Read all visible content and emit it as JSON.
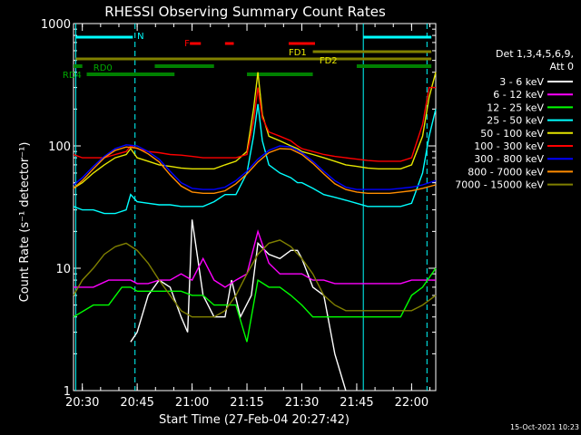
{
  "chart_data": {
    "type": "line",
    "title": "RHESSI Observing Summary Count Rates",
    "xlabel": "Start Time (27-Feb-04 20:27:42)",
    "ylabel": "Count Rate (s⁻¹ detector⁻¹)",
    "yscale": "log",
    "ylim": [
      1,
      1000
    ],
    "xlim_minutes": [
      20.46,
      22.11
    ],
    "x_ticks": [
      "20:30",
      "20:45",
      "21:00",
      "21:15",
      "21:30",
      "21:45",
      "22:00"
    ],
    "y_ticks": [
      "1",
      "10",
      "100",
      "1000"
    ],
    "legend": {
      "header": "Det 1,3,4,5,6,9,",
      "header2": "Att 0",
      "entries": [
        "3 - 6 keV",
        "6 - 12 keV",
        "12 - 25 keV",
        "25 - 50 keV",
        "50 - 100 keV",
        "100 - 300 keV",
        "300 - 800 keV",
        "800 - 7000 keV",
        "7000 - 15000 keV"
      ],
      "colors": [
        "#ffffff",
        "#ff00ff",
        "#00ff00",
        "#00ffff",
        "#e6e600",
        "#ff0000",
        "#0000ff",
        "#ff8c00",
        "#808000"
      ]
    },
    "annotations": {
      "N": "N",
      "F": "F",
      "FD1": "FD1",
      "FD2": "FD2",
      "RD0": "RD0",
      "RD4": "RD4"
    },
    "series": [
      {
        "name": "3 - 6 keV",
        "color": "#ffffff",
        "x": [
          20.46,
          20.55,
          20.62,
          20.68,
          20.72,
          20.75,
          20.8,
          20.85,
          20.9,
          20.95,
          20.98,
          21.0,
          21.05,
          21.1,
          21.15,
          21.18,
          21.22,
          21.27,
          21.3,
          21.35,
          21.4,
          21.45,
          21.48,
          21.5,
          21.55,
          21.6,
          21.65,
          21.7,
          21.75,
          21.8,
          21.85,
          21.9,
          21.95,
          22.0,
          22.05,
          22.11
        ],
        "y": [
          null,
          null,
          null,
          null,
          2.5,
          3.0,
          6,
          8,
          7,
          4,
          3,
          25,
          6,
          4,
          4,
          8,
          4,
          6,
          16,
          13,
          12,
          14,
          14,
          12,
          7,
          6,
          2,
          1,
          null,
          null,
          null,
          null,
          null,
          null,
          null,
          null
        ]
      },
      {
        "name": "6 - 12 keV",
        "color": "#ff00ff",
        "x": [
          20.46,
          20.55,
          20.62,
          20.68,
          20.72,
          20.75,
          20.8,
          20.85,
          20.9,
          20.95,
          21.0,
          21.05,
          21.1,
          21.15,
          21.2,
          21.25,
          21.3,
          21.35,
          21.4,
          21.45,
          21.5,
          21.55,
          21.6,
          21.65,
          21.7,
          21.75,
          21.8,
          21.85,
          21.9,
          21.95,
          22.0,
          22.05,
          22.11
        ],
        "y": [
          7,
          7,
          8,
          8,
          8,
          7.5,
          7.5,
          8,
          8,
          9,
          8,
          12,
          8,
          7,
          8,
          9,
          20,
          11,
          9,
          9,
          9,
          8,
          8,
          7.5,
          7.5,
          7.5,
          7.5,
          7.5,
          7.5,
          7.5,
          8,
          8,
          8
        ]
      },
      {
        "name": "12 - 25 keV",
        "color": "#00ff00",
        "x": [
          20.46,
          20.55,
          20.62,
          20.68,
          20.72,
          20.75,
          20.8,
          20.85,
          20.9,
          20.95,
          21.0,
          21.05,
          21.1,
          21.15,
          21.2,
          21.25,
          21.3,
          21.35,
          21.4,
          21.45,
          21.5,
          21.55,
          21.6,
          21.65,
          21.7,
          21.75,
          21.8,
          21.85,
          21.9,
          21.95,
          22.0,
          22.05,
          22.11
        ],
        "y": [
          4,
          5,
          5,
          7,
          7,
          6.5,
          6.5,
          6.5,
          6.5,
          6.5,
          6,
          6,
          5,
          5,
          5,
          2.5,
          8,
          7,
          7,
          6,
          5,
          4,
          4,
          4,
          4,
          4,
          4,
          4,
          4,
          4,
          6,
          7,
          10
        ]
      },
      {
        "name": "25 - 50 keV",
        "color": "#00ffff",
        "x": [
          20.46,
          20.5,
          20.55,
          20.6,
          20.65,
          20.7,
          20.72,
          20.75,
          20.8,
          20.85,
          20.9,
          20.95,
          21.0,
          21.05,
          21.1,
          21.15,
          21.2,
          21.25,
          21.28,
          21.3,
          21.32,
          21.35,
          21.4,
          21.45,
          21.48,
          21.5,
          21.55,
          21.6,
          21.65,
          21.7,
          21.75,
          21.8,
          21.85,
          21.9,
          21.95,
          22.0,
          22.05,
          22.08,
          22.11
        ],
        "y": [
          32,
          30,
          30,
          28,
          28,
          30,
          40,
          35,
          34,
          33,
          33,
          32,
          32,
          32,
          35,
          40,
          40,
          60,
          120,
          220,
          110,
          70,
          60,
          55,
          50,
          50,
          45,
          40,
          38,
          36,
          34,
          32,
          32,
          32,
          32,
          34,
          60,
          120,
          200
        ]
      },
      {
        "name": "50 - 100 keV",
        "color": "#e6e600",
        "x": [
          20.46,
          20.5,
          20.55,
          20.6,
          20.65,
          20.7,
          20.72,
          20.75,
          20.8,
          20.85,
          20.9,
          20.95,
          21.0,
          21.05,
          21.1,
          21.15,
          21.2,
          21.25,
          21.28,
          21.3,
          21.32,
          21.35,
          21.4,
          21.45,
          21.48,
          21.5,
          21.55,
          21.6,
          21.65,
          21.7,
          21.75,
          21.8,
          21.85,
          21.9,
          21.95,
          22.0,
          22.05,
          22.08,
          22.11
        ],
        "y": [
          45,
          50,
          60,
          70,
          80,
          85,
          95,
          80,
          75,
          70,
          68,
          66,
          65,
          65,
          65,
          70,
          75,
          90,
          200,
          400,
          180,
          120,
          110,
          100,
          95,
          90,
          85,
          80,
          75,
          70,
          68,
          66,
          65,
          65,
          65,
          70,
          120,
          250,
          400
        ]
      },
      {
        "name": "100 - 300 keV",
        "color": "#ff0000",
        "x": [
          20.46,
          20.5,
          20.55,
          20.6,
          20.65,
          20.7,
          20.72,
          20.75,
          20.8,
          20.85,
          20.9,
          20.95,
          21.0,
          21.05,
          21.1,
          21.15,
          21.2,
          21.25,
          21.28,
          21.3,
          21.32,
          21.35,
          21.4,
          21.45,
          21.48,
          21.5,
          21.55,
          21.6,
          21.65,
          21.7,
          21.75,
          21.8,
          21.85,
          21.9,
          21.95,
          22.0,
          22.05,
          22.08,
          22.11
        ],
        "y": [
          85,
          80,
          80,
          80,
          85,
          90,
          100,
          95,
          90,
          88,
          85,
          84,
          82,
          80,
          80,
          80,
          80,
          85,
          160,
          300,
          170,
          130,
          120,
          110,
          100,
          95,
          90,
          85,
          82,
          80,
          78,
          76,
          75,
          75,
          75,
          80,
          150,
          300,
          300
        ]
      },
      {
        "name": "300 - 800 keV",
        "color": "#0000ff",
        "x": [
          20.46,
          20.5,
          20.55,
          20.6,
          20.65,
          20.7,
          20.75,
          20.8,
          20.85,
          20.9,
          20.95,
          21.0,
          21.05,
          21.1,
          21.15,
          21.2,
          21.25,
          21.3,
          21.35,
          21.4,
          21.45,
          21.5,
          21.55,
          21.6,
          21.65,
          21.7,
          21.75,
          21.8,
          21.85,
          21.9,
          21.95,
          22.0,
          22.05,
          22.11
        ],
        "y": [
          48,
          55,
          68,
          82,
          95,
          102,
          100,
          90,
          78,
          62,
          50,
          45,
          44,
          44,
          46,
          52,
          62,
          78,
          92,
          100,
          98,
          88,
          75,
          62,
          52,
          46,
          44,
          44,
          44,
          44,
          45,
          46,
          48,
          52
        ]
      },
      {
        "name": "800 - 7000 keV",
        "color": "#ff8c00",
        "x": [
          20.46,
          20.5,
          20.55,
          20.6,
          20.65,
          20.7,
          20.75,
          20.8,
          20.85,
          20.9,
          20.95,
          21.0,
          21.05,
          21.1,
          21.15,
          21.2,
          21.25,
          21.3,
          21.35,
          21.4,
          21.45,
          21.5,
          21.55,
          21.6,
          21.65,
          21.7,
          21.75,
          21.8,
          21.85,
          21.9,
          21.95,
          22.0,
          22.05,
          22.11
        ],
        "y": [
          45,
          52,
          65,
          80,
          92,
          98,
          96,
          86,
          74,
          58,
          47,
          42,
          41,
          41,
          43,
          49,
          59,
          74,
          88,
          95,
          94,
          85,
          72,
          59,
          49,
          44,
          42,
          41,
          41,
          41,
          42,
          43,
          45,
          48
        ]
      },
      {
        "name": "7000 - 15000 keV",
        "color": "#808000",
        "x": [
          20.46,
          20.5,
          20.55,
          20.6,
          20.65,
          20.7,
          20.75,
          20.8,
          20.85,
          20.9,
          20.95,
          21.0,
          21.05,
          21.1,
          21.15,
          21.2,
          21.25,
          21.3,
          21.35,
          21.4,
          21.45,
          21.5,
          21.55,
          21.6,
          21.65,
          21.7,
          21.75,
          21.8,
          21.85,
          21.9,
          21.95,
          22.0,
          22.05,
          22.11
        ],
        "y": [
          6,
          8,
          10,
          13,
          15,
          16,
          14,
          11,
          8,
          6,
          4.5,
          4,
          4,
          4,
          4.5,
          6,
          9,
          13,
          16,
          17,
          15,
          12,
          9,
          6,
          5,
          4.5,
          4.5,
          4.5,
          4.5,
          4.5,
          4.5,
          4.5,
          5,
          6
        ]
      }
    ]
  },
  "footer": {
    "date": "15-Oct-2021 10:23"
  }
}
